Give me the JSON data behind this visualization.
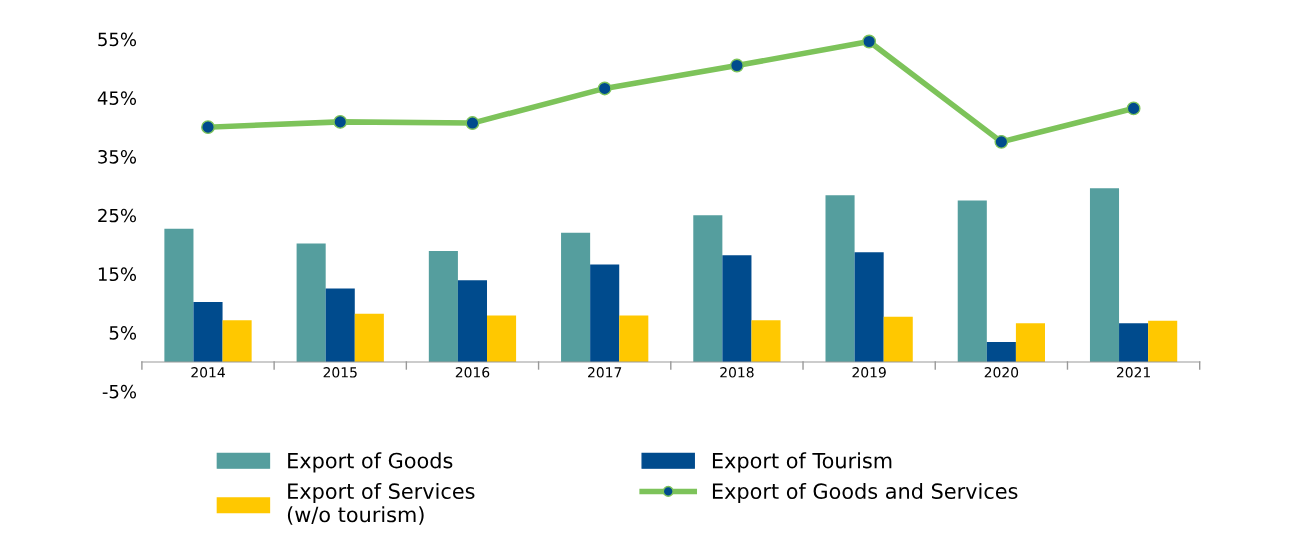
{
  "chart_data": {
    "type": "bar",
    "categories": [
      "2014",
      "2015",
      "2016",
      "2017",
      "2018",
      "2019",
      "2020",
      "2021"
    ],
    "series": [
      {
        "name": "Export of Goods",
        "color": "#559e9e",
        "values": [
          22.7,
          20.2,
          18.9,
          22.0,
          25.0,
          28.4,
          27.5,
          29.6
        ]
      },
      {
        "name": "Export of Tourism",
        "color": "#004b8d",
        "values": [
          10.2,
          12.5,
          13.9,
          16.6,
          18.2,
          18.7,
          3.4,
          6.6
        ]
      },
      {
        "name": "Export of Services\n(w/o tourism)",
        "color": "#ffc800",
        "values": [
          7.1,
          8.2,
          7.9,
          7.9,
          7.1,
          7.7,
          6.6,
          7.0
        ]
      },
      {
        "name": "Export of Goods and Services",
        "type": "line",
        "color": "#7dc35a",
        "marker": "circle",
        "values": [
          40.0,
          40.9,
          40.7,
          46.6,
          50.5,
          54.6,
          37.5,
          43.2
        ]
      }
    ],
    "ylim": [
      -5,
      55
    ],
    "yticks": [
      {
        "value": -5,
        "label": "-5%"
      },
      {
        "value": 5,
        "label": "5%"
      },
      {
        "value": 15,
        "label": "15%"
      },
      {
        "value": 25,
        "label": "25%"
      },
      {
        "value": 35,
        "label": "35%"
      },
      {
        "value": 45,
        "label": "45%"
      },
      {
        "value": 55,
        "label": "55%"
      }
    ],
    "grid": false,
    "legend": "bottom"
  }
}
